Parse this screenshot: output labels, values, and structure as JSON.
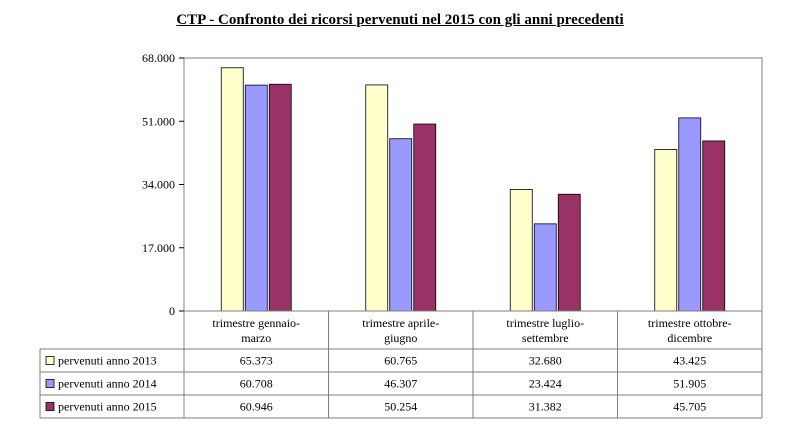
{
  "chart_data": {
    "type": "bar",
    "title": "CTP - Confronto dei ricorsi pervenuti nel 2015 con gli anni precedenti",
    "categories": [
      [
        "trimestre gennaio-",
        "marzo"
      ],
      [
        "trimestre aprile-",
        "giugno"
      ],
      [
        "trimestre luglio-",
        "settembre"
      ],
      [
        "trimestre ottobre-",
        "dicembre"
      ]
    ],
    "series": [
      {
        "name": "pervenuti anno 2013",
        "color": "#ffffcc",
        "values": [
          65373,
          60765,
          32680,
          43425
        ],
        "labels": [
          "65.373",
          "60.765",
          "32.680",
          "43.425"
        ]
      },
      {
        "name": "pervenuti anno 2014",
        "color": "#9999ff",
        "values": [
          60708,
          46307,
          23424,
          51905
        ],
        "labels": [
          "60.708",
          "46.307",
          "23.424",
          "51.905"
        ]
      },
      {
        "name": "pervenuti anno 2015",
        "color": "#993366",
        "values": [
          60946,
          50254,
          31382,
          45705
        ],
        "labels": [
          "60.946",
          "50.254",
          "31.382",
          "45.705"
        ]
      }
    ],
    "yticks": [
      "0",
      "17.000",
      "34.000",
      "51.000",
      "68.000"
    ],
    "ytick_values": [
      0,
      17000,
      34000,
      51000,
      68000
    ],
    "ylim": [
      0,
      68000
    ],
    "grid": false,
    "legend": "data-table"
  }
}
